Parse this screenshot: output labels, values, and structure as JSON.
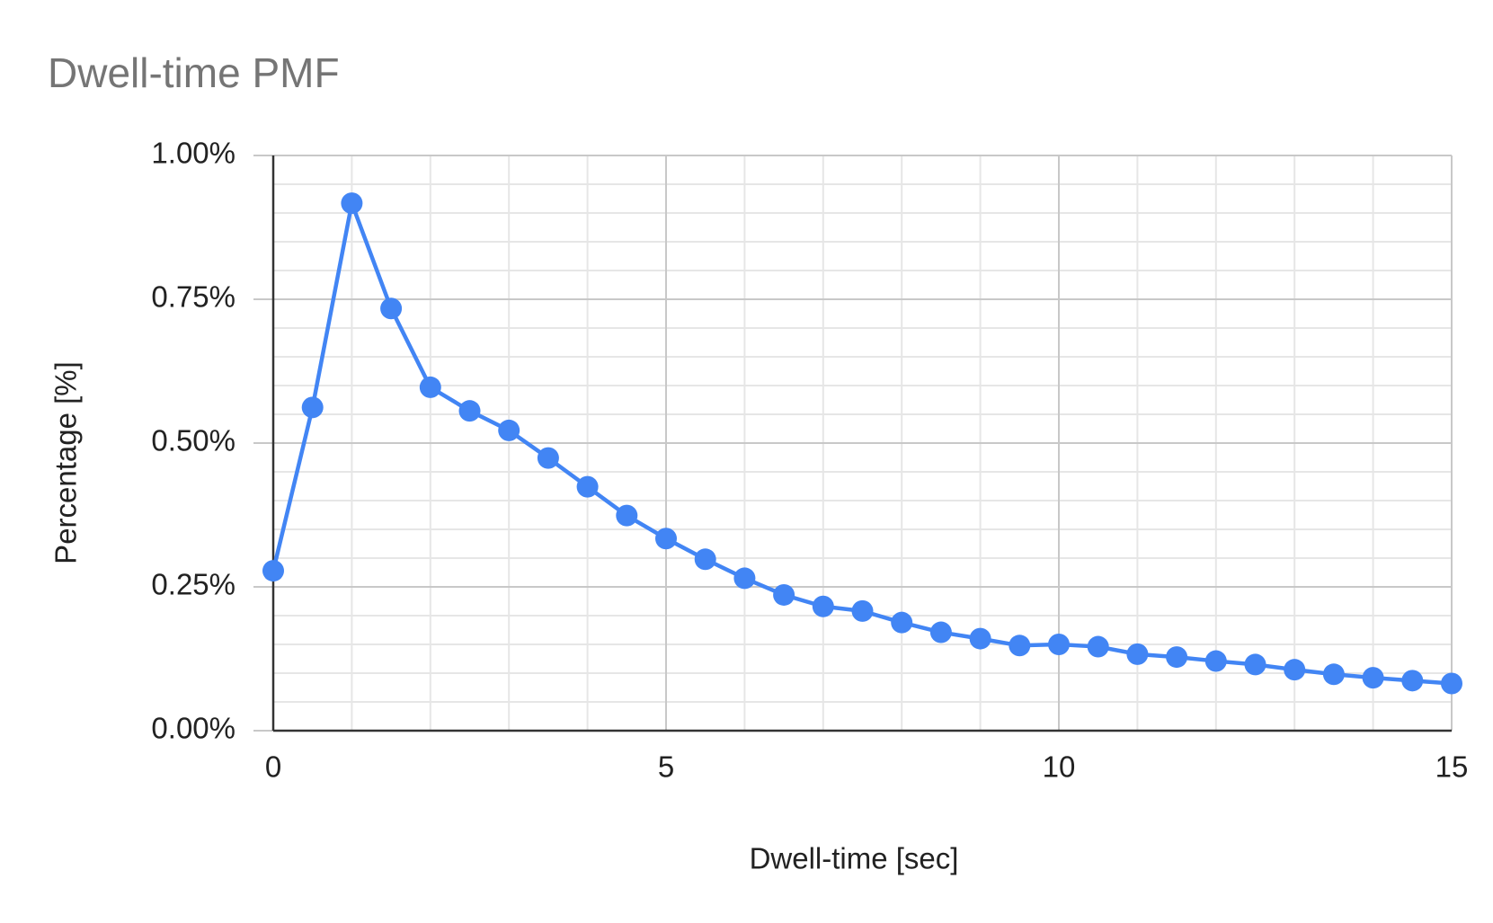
{
  "chart_data": {
    "type": "line",
    "title": "Dwell-time PMF",
    "x_label": "Dwell-time [sec]",
    "y_label": "Percentage [%]",
    "x": [
      0,
      0.5,
      1,
      1.5,
      2,
      2.5,
      3,
      3.5,
      4,
      4.5,
      5,
      5.5,
      6,
      6.5,
      7,
      7.5,
      8,
      8.5,
      9,
      9.5,
      10,
      10.5,
      11,
      11.5,
      12,
      12.5,
      13,
      13.5,
      14,
      14.5,
      15
    ],
    "series": [
      {
        "name": "Percentage",
        "color": "#4285f4",
        "values": [
          0.278,
          0.562,
          0.917,
          0.734,
          0.597,
          0.556,
          0.522,
          0.474,
          0.424,
          0.374,
          0.334,
          0.298,
          0.265,
          0.236,
          0.216,
          0.208,
          0.188,
          0.171,
          0.16,
          0.148,
          0.15,
          0.146,
          0.133,
          0.128,
          0.121,
          0.115,
          0.106,
          0.098,
          0.092,
          0.087,
          0.082
        ]
      }
    ],
    "xlim": [
      0,
      15
    ],
    "ylim": [
      0,
      1
    ],
    "xticks": [
      0,
      5,
      10,
      15
    ],
    "yticks": [
      {
        "value": 0,
        "label": "0.00%"
      },
      {
        "value": 0.25,
        "label": "0.25%"
      },
      {
        "value": 0.5,
        "label": "0.50%"
      },
      {
        "value": 0.75,
        "label": "0.75%"
      },
      {
        "value": 1,
        "label": "1.00%"
      }
    ],
    "x_minor_ticks": [
      1,
      2,
      3,
      4,
      6,
      7,
      8,
      9,
      11,
      12,
      13,
      14
    ],
    "y_minor_ticks": [
      0.05,
      0.1,
      0.15,
      0.2,
      0.3,
      0.35,
      0.4,
      0.45,
      0.55,
      0.6,
      0.65,
      0.7,
      0.8,
      0.85,
      0.9,
      0.95
    ],
    "grid": true,
    "legend": false
  }
}
